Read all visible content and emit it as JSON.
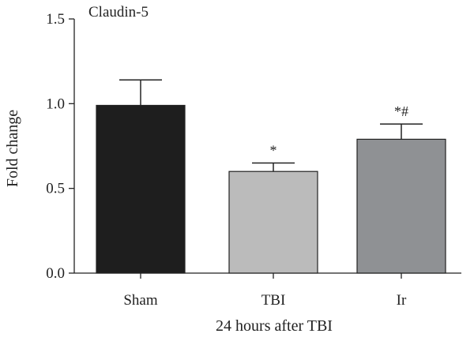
{
  "chart_data": {
    "type": "bar",
    "title": "Claudin-5",
    "xlabel": "24 hours after TBI",
    "ylabel": "Fold change",
    "categories": [
      "Sham",
      "TBI",
      "Ir"
    ],
    "values": [
      0.99,
      0.6,
      0.79
    ],
    "errors": [
      0.15,
      0.05,
      0.09
    ],
    "significance": [
      "",
      "*",
      "*#"
    ],
    "bar_colors": [
      "#1e1e1e",
      "#bbbbbb",
      "#8f9194"
    ],
    "ylim": [
      0,
      1.5
    ],
    "yticks": [
      "0.0",
      "0.5",
      "1.0",
      "1.5"
    ],
    "grid": false,
    "legend": "none"
  }
}
